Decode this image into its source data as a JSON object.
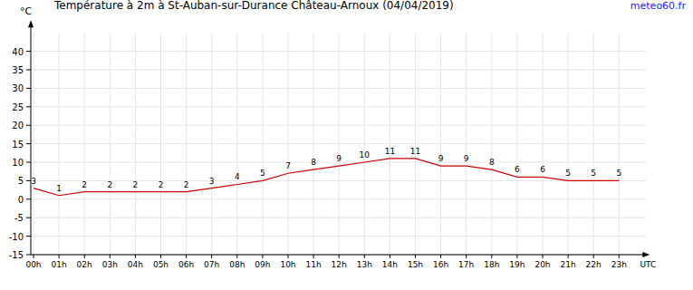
{
  "chart_data": {
    "type": "line",
    "title": "Température à 2m à St-Auban-sur-Durance Château-Arnoux (04/04/2019)",
    "source": "meteo60.fr",
    "y_label": "°C",
    "x_label": "UTC",
    "categories": [
      "00h",
      "01h",
      "02h",
      "03h",
      "04h",
      "05h",
      "06h",
      "07h",
      "08h",
      "09h",
      "10h",
      "11h",
      "12h",
      "13h",
      "14h",
      "15h",
      "16h",
      "17h",
      "18h",
      "19h",
      "20h",
      "21h",
      "22h",
      "23h"
    ],
    "values": [
      3,
      1,
      2,
      2,
      2,
      2,
      2,
      3,
      4,
      5,
      7,
      8,
      9,
      10,
      11,
      11,
      9,
      9,
      8,
      6,
      6,
      5,
      5,
      5
    ],
    "color": "#cc0000",
    "ylim": [
      -15,
      45
    ],
    "yticks": [
      -15,
      -10,
      -5,
      0,
      5,
      10,
      15,
      20,
      25,
      30,
      35,
      40
    ],
    "grid": true,
    "data_labels": true
  }
}
